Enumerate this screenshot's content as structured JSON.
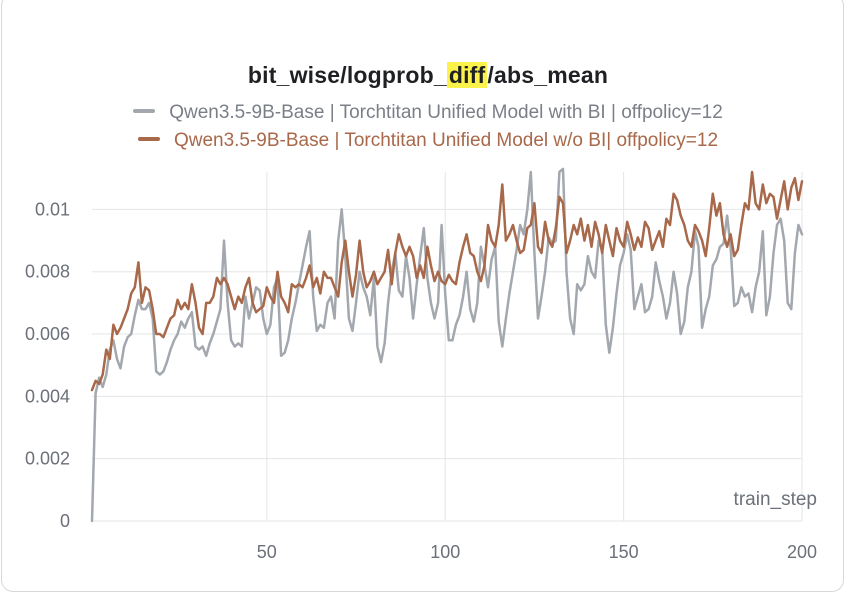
{
  "chart_data": {
    "type": "line",
    "title_parts": {
      "pre": "bit_wise/logprob_",
      "highlight": "diff",
      "post": "/abs_mean"
    },
    "xlabel": "train_step",
    "ylabel": "",
    "xlim": [
      1,
      200
    ],
    "ylim": [
      0,
      0.0112
    ],
    "x_ticks": [
      50,
      100,
      150,
      200
    ],
    "y_ticks": [
      0,
      0.002,
      0.004,
      0.006,
      0.008,
      0.01
    ],
    "y_tick_labels": [
      "0",
      "0.002",
      "0.004",
      "0.006",
      "0.008",
      "0.01"
    ],
    "grid": true,
    "legend_position": "top",
    "series": [
      {
        "name": "Qwen3.5-9B-Base | Torchtitan Unified Model with BI | offpolicy=12",
        "color": "#a3a8ae",
        "x_start": 1,
        "values": [
          0.0,
          0.0041,
          0.0046,
          0.0043,
          0.0047,
          0.0055,
          0.0058,
          0.0052,
          0.0049,
          0.0056,
          0.0059,
          0.006,
          0.0066,
          0.0071,
          0.0068,
          0.0068,
          0.007,
          0.0065,
          0.0048,
          0.0047,
          0.0048,
          0.0051,
          0.0055,
          0.0058,
          0.006,
          0.0064,
          0.0062,
          0.0065,
          0.0067,
          0.0056,
          0.0055,
          0.0056,
          0.0053,
          0.0057,
          0.006,
          0.0064,
          0.0068,
          0.009,
          0.007,
          0.0058,
          0.0056,
          0.0057,
          0.0056,
          0.0072,
          0.0065,
          0.007,
          0.0075,
          0.0074,
          0.0065,
          0.006,
          0.0063,
          0.0075,
          0.0078,
          0.0053,
          0.0054,
          0.0058,
          0.0065,
          0.007,
          0.0076,
          0.0082,
          0.0088,
          0.0093,
          0.0072,
          0.0061,
          0.0063,
          0.0062,
          0.007,
          0.0072,
          0.0065,
          0.009,
          0.01,
          0.0085,
          0.0065,
          0.0061,
          0.007,
          0.008,
          0.0075,
          0.0072,
          0.0066,
          0.0078,
          0.0056,
          0.0051,
          0.0057,
          0.007,
          0.008,
          0.0086,
          0.0074,
          0.0072,
          0.0085,
          0.0078,
          0.0065,
          0.0076,
          0.0085,
          0.0094,
          0.0078,
          0.007,
          0.0065,
          0.007,
          0.0095,
          0.0073,
          0.0058,
          0.0058,
          0.0063,
          0.0066,
          0.0072,
          0.008,
          0.0068,
          0.0064,
          0.007,
          0.0088,
          0.0082,
          0.0075,
          0.0084,
          0.0088,
          0.0064,
          0.0056,
          0.0065,
          0.0073,
          0.008,
          0.0087,
          0.0095,
          0.0092,
          0.01,
          0.0112,
          0.0086,
          0.0065,
          0.0072,
          0.008,
          0.0091,
          0.0089,
          0.009,
          0.0112,
          0.0113,
          0.008,
          0.0065,
          0.006,
          0.0076,
          0.0074,
          0.0076,
          0.0085,
          0.008,
          0.0078,
          0.009,
          0.0087,
          0.0063,
          0.0054,
          0.0062,
          0.0073,
          0.0082,
          0.0086,
          0.0092,
          0.0087,
          0.0068,
          0.0072,
          0.0076,
          0.0067,
          0.0068,
          0.0072,
          0.0083,
          0.0077,
          0.0072,
          0.0065,
          0.007,
          0.008,
          0.0073,
          0.006,
          0.0064,
          0.0075,
          0.008,
          0.0093,
          0.0088,
          0.0062,
          0.0068,
          0.0072,
          0.0082,
          0.0084,
          0.0088,
          0.0089,
          0.0098,
          0.0088,
          0.0069,
          0.007,
          0.0075,
          0.0072,
          0.0073,
          0.0067,
          0.0075,
          0.008,
          0.0093,
          0.0066,
          0.0072,
          0.0086,
          0.0095,
          0.0097,
          0.009,
          0.007,
          0.0068,
          0.0086,
          0.0095,
          0.0092
        ]
      },
      {
        "name": "Qwen3.5-9B-Base | Torchtitan Unified Model w/o BI| offpolicy=12",
        "color": "#a8684a",
        "x_start": 1,
        "values": [
          0.0042,
          0.0045,
          0.0044,
          0.0047,
          0.0055,
          0.0052,
          0.0063,
          0.006,
          0.0062,
          0.0065,
          0.0068,
          0.0073,
          0.0075,
          0.0083,
          0.007,
          0.0075,
          0.0074,
          0.0068,
          0.006,
          0.006,
          0.0059,
          0.0062,
          0.0065,
          0.0066,
          0.0071,
          0.0068,
          0.007,
          0.0068,
          0.0076,
          0.007,
          0.0062,
          0.006,
          0.007,
          0.007,
          0.0072,
          0.0078,
          0.0076,
          0.0078,
          0.0076,
          0.0072,
          0.0068,
          0.0072,
          0.007,
          0.0075,
          0.0078,
          0.007,
          0.0067,
          0.0068,
          0.0069,
          0.0075,
          0.0072,
          0.007,
          0.008,
          0.0072,
          0.007,
          0.0067,
          0.0076,
          0.0075,
          0.0076,
          0.0075,
          0.0078,
          0.0082,
          0.0075,
          0.0078,
          0.0073,
          0.008,
          0.0078,
          0.0078,
          0.0075,
          0.0072,
          0.0083,
          0.009,
          0.008,
          0.0072,
          0.0079,
          0.009,
          0.008,
          0.0075,
          0.0077,
          0.008,
          0.0076,
          0.0078,
          0.008,
          0.0087,
          0.0076,
          0.0086,
          0.0092,
          0.0088,
          0.0085,
          0.0088,
          0.0085,
          0.0078,
          0.0082,
          0.0078,
          0.0088,
          0.0082,
          0.0077,
          0.008,
          0.0077,
          0.0076,
          0.0079,
          0.0077,
          0.0076,
          0.0083,
          0.0088,
          0.0092,
          0.0086,
          0.0085,
          0.008,
          0.0077,
          0.0082,
          0.0095,
          0.009,
          0.0088,
          0.0095,
          0.0108,
          0.009,
          0.0092,
          0.0095,
          0.009,
          0.0086,
          0.0087,
          0.0094,
          0.0095,
          0.0102,
          0.0088,
          0.0086,
          0.0096,
          0.009,
          0.0088,
          0.0094,
          0.0104,
          0.0102,
          0.0086,
          0.009,
          0.0095,
          0.0092,
          0.0097,
          0.009,
          0.0095,
          0.0088,
          0.0096,
          0.0092,
          0.0086,
          0.0095,
          0.009,
          0.0085,
          0.0094,
          0.009,
          0.0088,
          0.0096,
          0.0092,
          0.0087,
          0.0091,
          0.0088,
          0.0096,
          0.0094,
          0.0087,
          0.009,
          0.0093,
          0.0088,
          0.0097,
          0.0095,
          0.0105,
          0.0103,
          0.0098,
          0.0095,
          0.009,
          0.0088,
          0.0095,
          0.0093,
          0.009,
          0.0085,
          0.0094,
          0.0105,
          0.0098,
          0.0102,
          0.0092,
          0.0088,
          0.0092,
          0.0085,
          0.0087,
          0.0095,
          0.0102,
          0.01,
          0.0112,
          0.0102,
          0.01,
          0.0108,
          0.0102,
          0.0105,
          0.0104,
          0.0097,
          0.0103,
          0.0109,
          0.01,
          0.0107,
          0.011,
          0.0103,
          0.0109
        ]
      }
    ]
  }
}
